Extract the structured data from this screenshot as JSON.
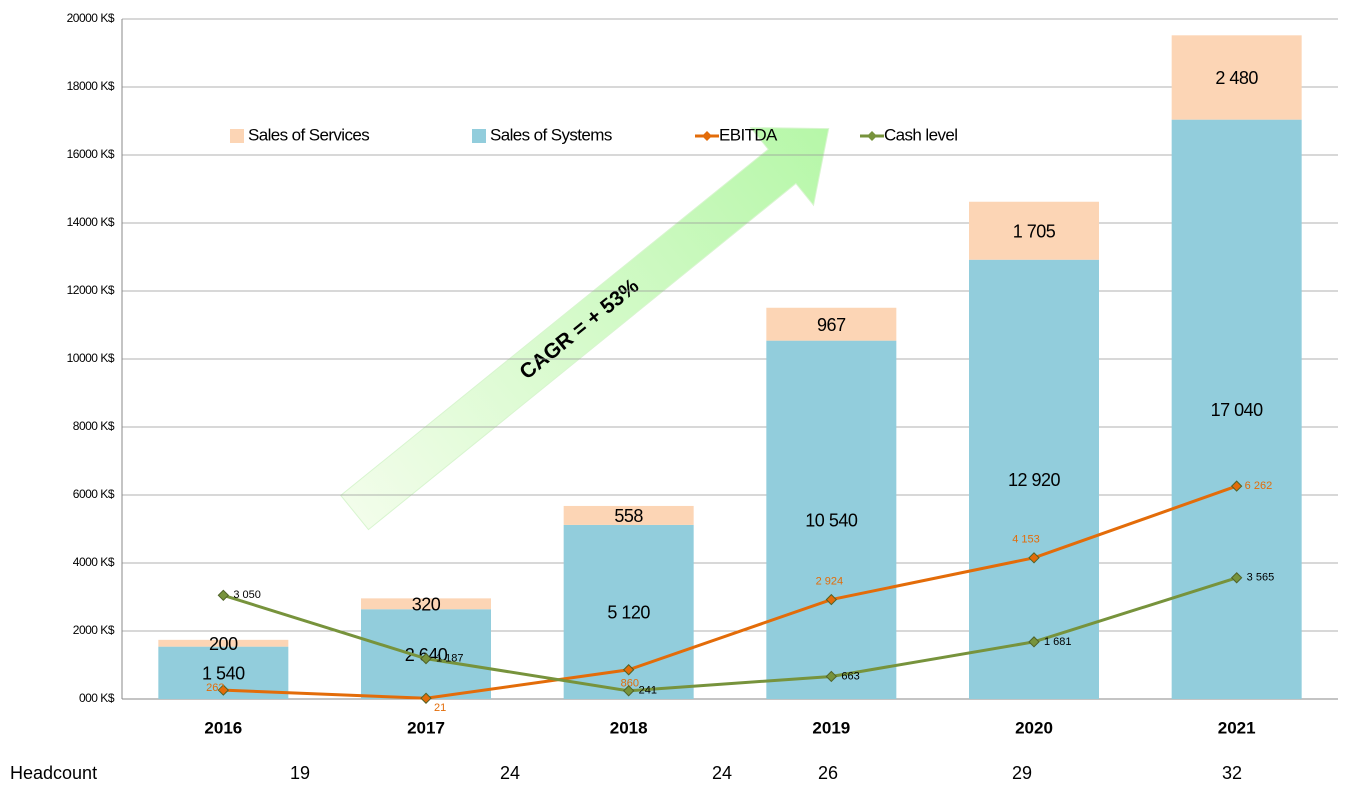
{
  "chart_data": {
    "type": "bar",
    "categories": [
      "2016",
      "2017",
      "2018",
      "2019",
      "2020",
      "2021"
    ],
    "stacked": true,
    "series": [
      {
        "name": "Sales of Systems",
        "color": "#92cddc",
        "values": [
          1540,
          2640,
          5120,
          10540,
          12920,
          17040
        ],
        "value_labels": [
          "1 540",
          "2 640",
          "5 120",
          "10 540",
          "12 920",
          "17 040"
        ]
      },
      {
        "name": "Sales of Services",
        "color": "#fcd5b5",
        "values": [
          200,
          320,
          558,
          967,
          1705,
          2480
        ],
        "value_labels": [
          "200",
          "320",
          "558",
          "967",
          "1 705",
          "2 480"
        ]
      },
      {
        "name": "EBITDA",
        "type": "line",
        "color": "#e36c09",
        "values": [
          262,
          21,
          860,
          2924,
          4153,
          6262
        ],
        "value_labels": [
          "262",
          "21",
          "860",
          "2 924",
          "4 153",
          "6 262"
        ]
      },
      {
        "name": "Cash level",
        "type": "line",
        "color": "#77933c",
        "values": [
          3050,
          1187,
          241,
          663,
          1681,
          3565
        ],
        "value_labels": [
          "3 050",
          "1 187",
          "241",
          "663",
          "1 681",
          "3 565"
        ]
      }
    ],
    "legend_order": [
      1,
      0,
      2,
      3
    ],
    "ylim": [
      0,
      20000
    ],
    "yticks": [
      {
        "value": 0,
        "label": "000 K$"
      },
      {
        "value": 2000,
        "label": "2000 K$"
      },
      {
        "value": 4000,
        "label": "4000 K$"
      },
      {
        "value": 6000,
        "label": "6000 K$"
      },
      {
        "value": 8000,
        "label": "8000 K$"
      },
      {
        "value": 10000,
        "label": "10000 K$"
      },
      {
        "value": 12000,
        "label": "12000 K$"
      },
      {
        "value": 14000,
        "label": "14000 K$"
      },
      {
        "value": 16000,
        "label": "16000 K$"
      },
      {
        "value": 18000,
        "label": "18000 K$"
      },
      {
        "value": 20000,
        "label": "20000 K$"
      }
    ],
    "grid": true,
    "annotation": "CAGR = + 53%",
    "headcount": {
      "label": "Headcount",
      "values": [
        19,
        24,
        24,
        26,
        29,
        32
      ]
    }
  }
}
